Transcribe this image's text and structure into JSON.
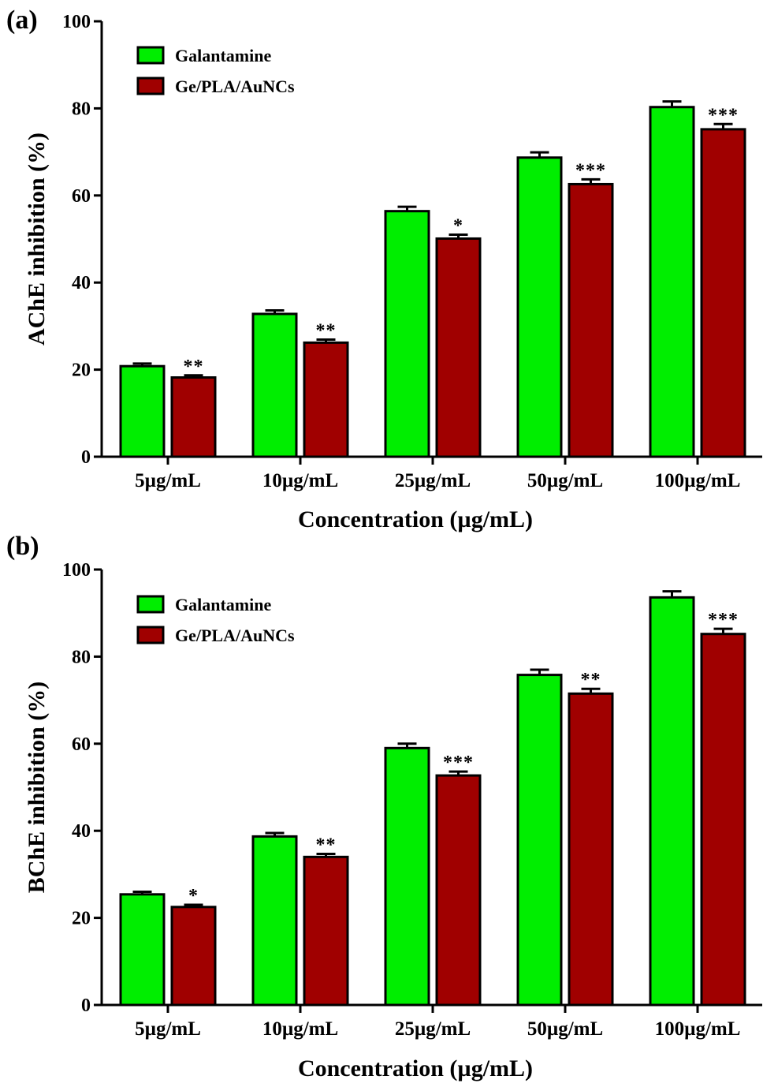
{
  "chart_data": [
    {
      "panel_label": "(a)",
      "type": "bar",
      "title": "",
      "xlabel": "Concentration (µg/mL)",
      "ylabel": "AChE inhibition (%)",
      "ylim": [
        0,
        100
      ],
      "yticks": [
        "0",
        "20",
        "40",
        "60",
        "80",
        "100"
      ],
      "categories": [
        "5µg/mL",
        "10µg/mL",
        "25µg/mL",
        "50µg/mL",
        "100µg/mL"
      ],
      "legend_position": "top-left",
      "series": [
        {
          "name": "Galantamine",
          "color": "#00ee00",
          "values": [
            20.8,
            32.8,
            56.4,
            68.7,
            80.3
          ],
          "errors": [
            0.6,
            0.8,
            1.0,
            1.2,
            1.3
          ],
          "significance": [
            "",
            "",
            "",
            "",
            ""
          ]
        },
        {
          "name": "Ge/PLA/AuNCs",
          "color": "#a00000",
          "values": [
            18.2,
            26.2,
            50.1,
            62.6,
            75.2
          ],
          "errors": [
            0.5,
            0.7,
            0.9,
            1.1,
            1.2
          ],
          "significance": [
            "**",
            "**",
            "*",
            "***",
            "***"
          ]
        }
      ]
    },
    {
      "panel_label": "(b)",
      "type": "bar",
      "title": "",
      "xlabel": "Concentration (µg/mL)",
      "ylabel": "BChE inhibition (%)",
      "ylim": [
        0,
        100
      ],
      "yticks": [
        "0",
        "20",
        "40",
        "60",
        "80",
        "100"
      ],
      "categories": [
        "5µg/mL",
        "10µg/mL",
        "25µg/mL",
        "50µg/mL",
        "100µg/mL"
      ],
      "legend_position": "top-left",
      "series": [
        {
          "name": "Galantamine",
          "color": "#00ee00",
          "values": [
            25.4,
            38.7,
            59.0,
            75.8,
            93.6
          ],
          "errors": [
            0.6,
            0.8,
            1.0,
            1.2,
            1.4
          ],
          "significance": [
            "",
            "",
            "",
            "",
            ""
          ]
        },
        {
          "name": "Ge/PLA/AuNCs",
          "color": "#a00000",
          "values": [
            22.5,
            34.0,
            52.7,
            71.5,
            85.2
          ],
          "errors": [
            0.5,
            0.7,
            0.9,
            1.1,
            1.2
          ],
          "significance": [
            "*",
            "**",
            "***",
            "**",
            "***"
          ]
        }
      ]
    }
  ]
}
